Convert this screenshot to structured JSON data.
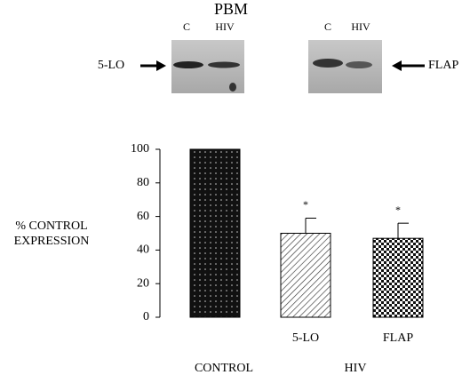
{
  "chart_data": {
    "type": "bar",
    "title": "PBM",
    "blots": [
      {
        "label": "5-LO",
        "lanes": [
          "C",
          "HIV"
        ]
      },
      {
        "label": "FLAP",
        "lanes": [
          "C",
          "HIV"
        ]
      }
    ],
    "y_label": [
      "% CONTROL",
      "EXPRESSION"
    ],
    "categories": [
      "CONTROL",
      "5-LO",
      "FLAP"
    ],
    "group_label": "HIV",
    "values": [
      100,
      50,
      47
    ],
    "errors": [
      null,
      9,
      9
    ],
    "significance": [
      null,
      "*",
      "*"
    ],
    "patterns": [
      "dots",
      "hatch",
      "checker"
    ],
    "ylim": [
      0,
      100
    ],
    "yticks": [
      0,
      20,
      40,
      60,
      80,
      100
    ]
  }
}
